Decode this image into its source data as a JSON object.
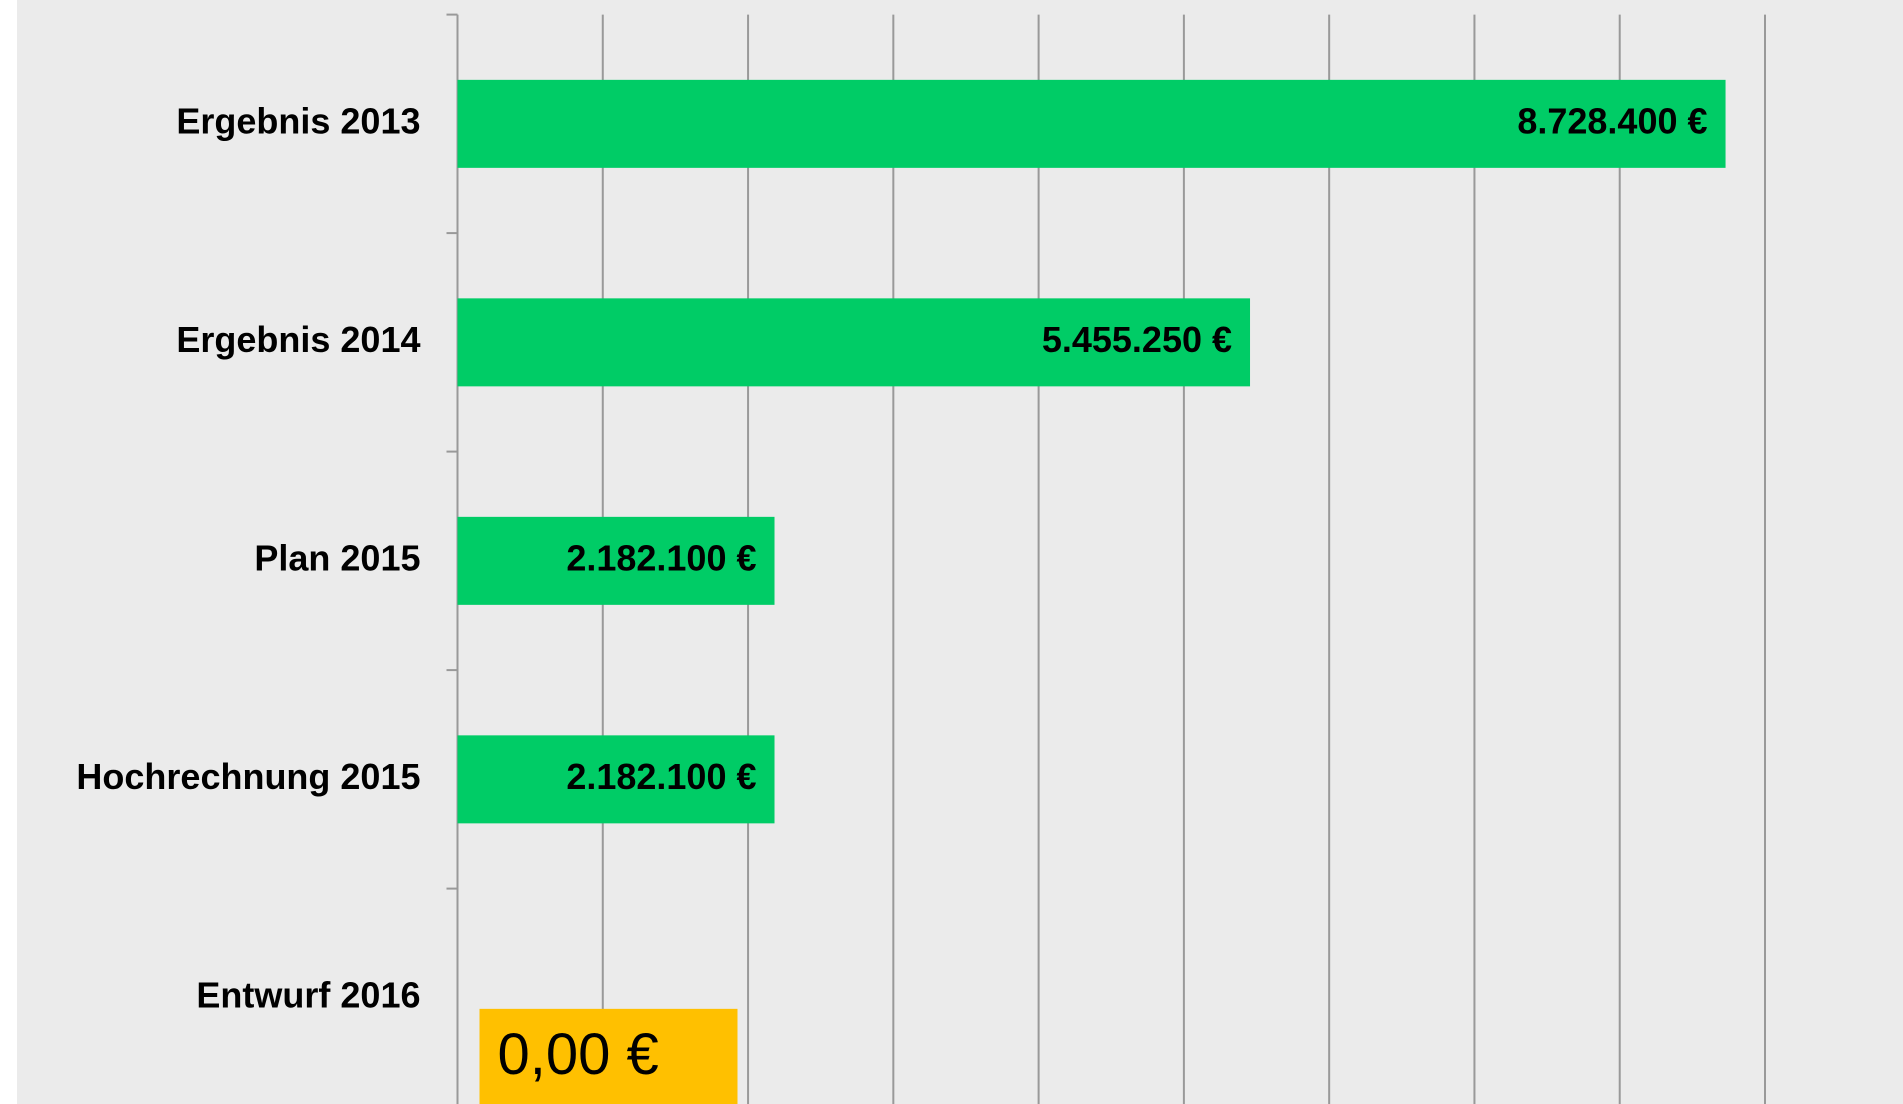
{
  "chart_data": {
    "type": "barh",
    "categories": [
      "Ergebnis 2013",
      "Ergebnis 2014",
      "Plan 2015",
      "Hochrechnung 2015",
      "Entwurf 2016"
    ],
    "values": [
      8728400,
      5455250,
      2182100,
      2182100,
      0
    ],
    "value_labels": [
      "8.728.400 €",
      "5.455.250 €",
      "2.182.100 €",
      "2.182.100 €",
      "0,00 €"
    ],
    "color": "#00cc66",
    "xlim": [
      0,
      9000000
    ],
    "xticks": [
      0,
      1000000,
      2000000,
      3000000,
      4000000,
      5000000,
      6000000,
      7000000,
      8000000,
      9000000
    ],
    "grid": true
  }
}
